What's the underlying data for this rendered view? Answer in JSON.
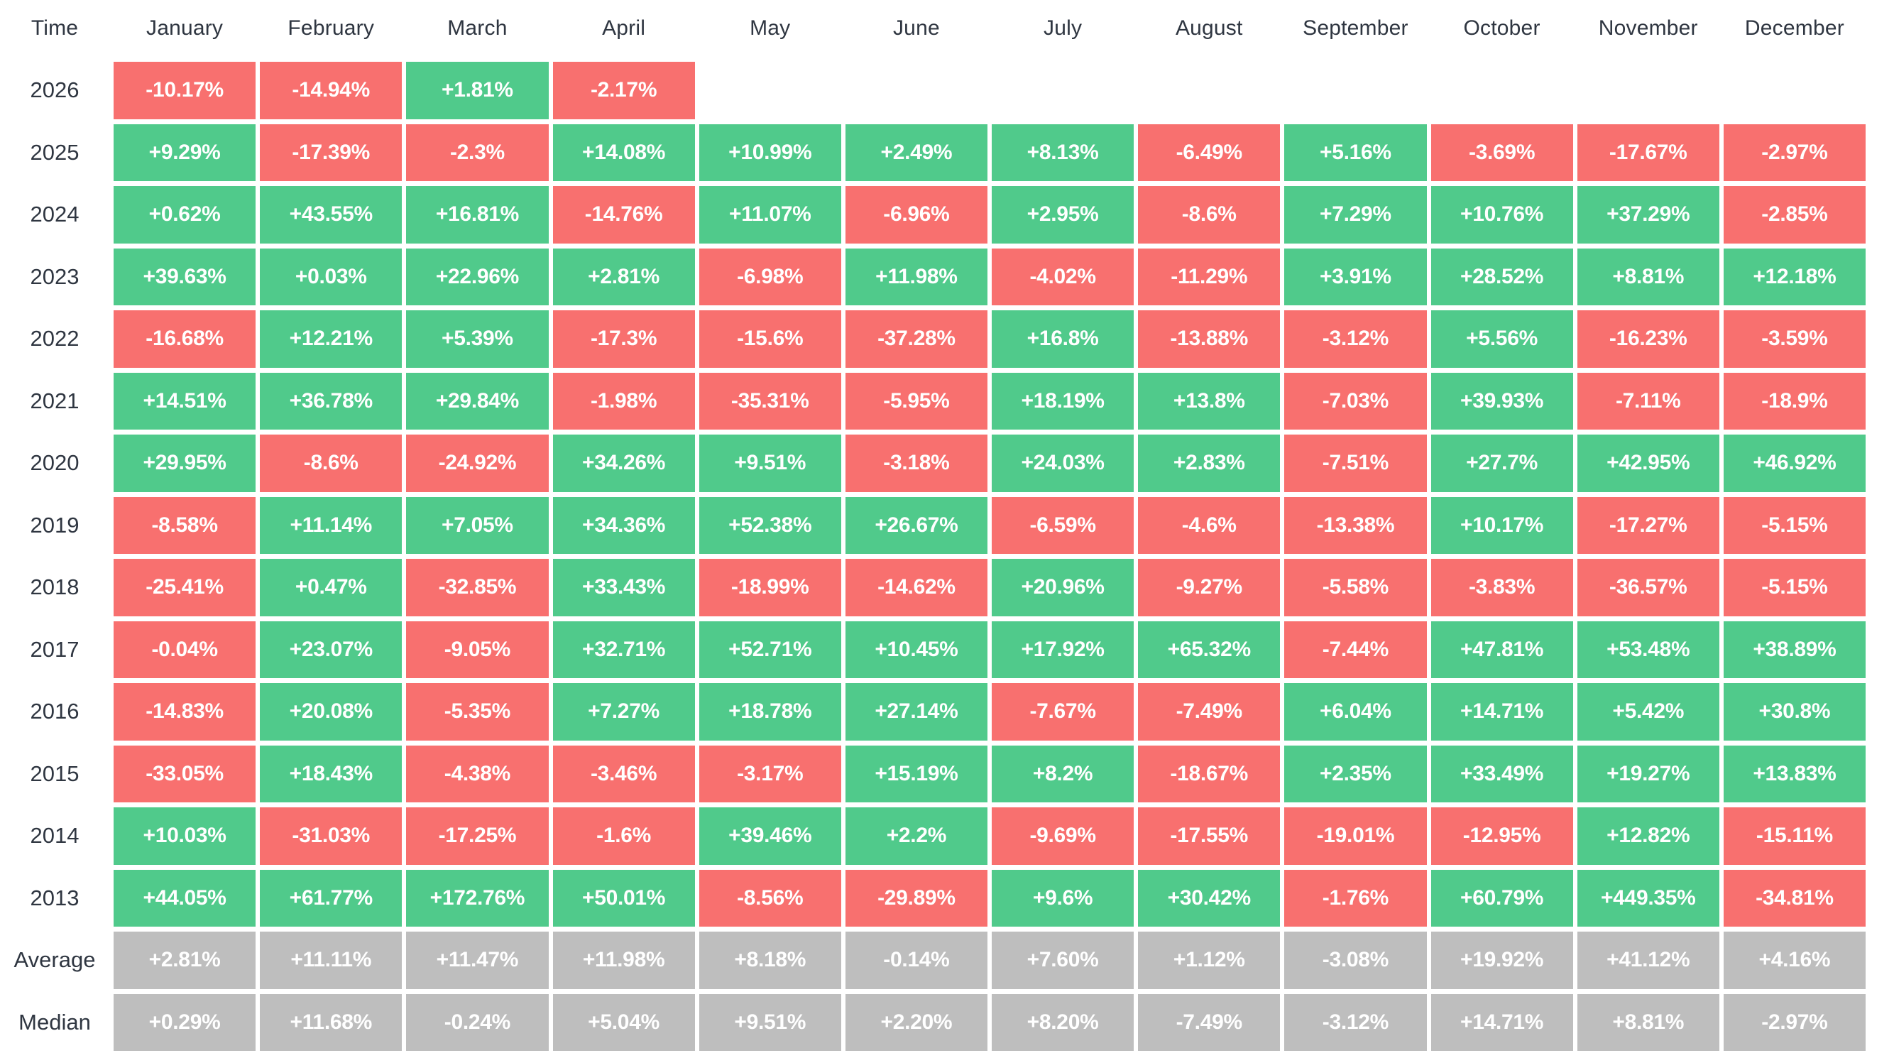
{
  "colors": {
    "positive": "#50CA8B",
    "negative": "#F8706F",
    "summary": "#BEBEBE",
    "header_text": "#2F3641",
    "cell_text": "#FFFFFF",
    "background": "#FFFFFF"
  },
  "table": {
    "corner_label": "Time",
    "months": [
      "January",
      "February",
      "March",
      "April",
      "May",
      "June",
      "July",
      "August",
      "September",
      "October",
      "November",
      "December"
    ],
    "rows": [
      {
        "label": "2026",
        "type": "year",
        "cells": [
          "-10.17%",
          "-14.94%",
          "+1.81%",
          "-2.17%",
          "",
          "",
          "",
          "",
          "",
          "",
          "",
          ""
        ]
      },
      {
        "label": "2025",
        "type": "year",
        "cells": [
          "+9.29%",
          "-17.39%",
          "-2.3%",
          "+14.08%",
          "+10.99%",
          "+2.49%",
          "+8.13%",
          "-6.49%",
          "+5.16%",
          "-3.69%",
          "-17.67%",
          "-2.97%"
        ]
      },
      {
        "label": "2024",
        "type": "year",
        "cells": [
          "+0.62%",
          "+43.55%",
          "+16.81%",
          "-14.76%",
          "+11.07%",
          "-6.96%",
          "+2.95%",
          "-8.6%",
          "+7.29%",
          "+10.76%",
          "+37.29%",
          "-2.85%"
        ]
      },
      {
        "label": "2023",
        "type": "year",
        "cells": [
          "+39.63%",
          "+0.03%",
          "+22.96%",
          "+2.81%",
          "-6.98%",
          "+11.98%",
          "-4.02%",
          "-11.29%",
          "+3.91%",
          "+28.52%",
          "+8.81%",
          "+12.18%"
        ]
      },
      {
        "label": "2022",
        "type": "year",
        "cells": [
          "-16.68%",
          "+12.21%",
          "+5.39%",
          "-17.3%",
          "-15.6%",
          "-37.28%",
          "+16.8%",
          "-13.88%",
          "-3.12%",
          "+5.56%",
          "-16.23%",
          "-3.59%"
        ]
      },
      {
        "label": "2021",
        "type": "year",
        "cells": [
          "+14.51%",
          "+36.78%",
          "+29.84%",
          "-1.98%",
          "-35.31%",
          "-5.95%",
          "+18.19%",
          "+13.8%",
          "-7.03%",
          "+39.93%",
          "-7.11%",
          "-18.9%"
        ]
      },
      {
        "label": "2020",
        "type": "year",
        "cells": [
          "+29.95%",
          "-8.6%",
          "-24.92%",
          "+34.26%",
          "+9.51%",
          "-3.18%",
          "+24.03%",
          "+2.83%",
          "-7.51%",
          "+27.7%",
          "+42.95%",
          "+46.92%"
        ]
      },
      {
        "label": "2019",
        "type": "year",
        "cells": [
          "-8.58%",
          "+11.14%",
          "+7.05%",
          "+34.36%",
          "+52.38%",
          "+26.67%",
          "-6.59%",
          "-4.6%",
          "-13.38%",
          "+10.17%",
          "-17.27%",
          "-5.15%"
        ]
      },
      {
        "label": "2018",
        "type": "year",
        "cells": [
          "-25.41%",
          "+0.47%",
          "-32.85%",
          "+33.43%",
          "-18.99%",
          "-14.62%",
          "+20.96%",
          "-9.27%",
          "-5.58%",
          "-3.83%",
          "-36.57%",
          "-5.15%"
        ]
      },
      {
        "label": "2017",
        "type": "year",
        "cells": [
          "-0.04%",
          "+23.07%",
          "-9.05%",
          "+32.71%",
          "+52.71%",
          "+10.45%",
          "+17.92%",
          "+65.32%",
          "-7.44%",
          "+47.81%",
          "+53.48%",
          "+38.89%"
        ]
      },
      {
        "label": "2016",
        "type": "year",
        "cells": [
          "-14.83%",
          "+20.08%",
          "-5.35%",
          "+7.27%",
          "+18.78%",
          "+27.14%",
          "-7.67%",
          "-7.49%",
          "+6.04%",
          "+14.71%",
          "+5.42%",
          "+30.8%"
        ]
      },
      {
        "label": "2015",
        "type": "year",
        "cells": [
          "-33.05%",
          "+18.43%",
          "-4.38%",
          "-3.46%",
          "-3.17%",
          "+15.19%",
          "+8.2%",
          "-18.67%",
          "+2.35%",
          "+33.49%",
          "+19.27%",
          "+13.83%"
        ]
      },
      {
        "label": "2014",
        "type": "year",
        "cells": [
          "+10.03%",
          "-31.03%",
          "-17.25%",
          "-1.6%",
          "+39.46%",
          "+2.2%",
          "-9.69%",
          "-17.55%",
          "-19.01%",
          "-12.95%",
          "+12.82%",
          "-15.11%"
        ]
      },
      {
        "label": "2013",
        "type": "year",
        "cells": [
          "+44.05%",
          "+61.77%",
          "+172.76%",
          "+50.01%",
          "-8.56%",
          "-29.89%",
          "+9.6%",
          "+30.42%",
          "-1.76%",
          "+60.79%",
          "+449.35%",
          "-34.81%"
        ]
      },
      {
        "label": "Average",
        "type": "summary",
        "cells": [
          "+2.81%",
          "+11.11%",
          "+11.47%",
          "+11.98%",
          "+8.18%",
          "-0.14%",
          "+7.60%",
          "+1.12%",
          "-3.08%",
          "+19.92%",
          "+41.12%",
          "+4.16%"
        ]
      },
      {
        "label": "Median",
        "type": "summary",
        "cells": [
          "+0.29%",
          "+11.68%",
          "-0.24%",
          "+5.04%",
          "+9.51%",
          "+2.20%",
          "+8.20%",
          "-7.49%",
          "-3.12%",
          "+14.71%",
          "+8.81%",
          "-2.97%"
        ]
      }
    ]
  },
  "chart_data": {
    "type": "heatmap",
    "x_categories": [
      "January",
      "February",
      "March",
      "April",
      "May",
      "June",
      "July",
      "August",
      "September",
      "October",
      "November",
      "December"
    ],
    "y_categories": [
      "2026",
      "2025",
      "2024",
      "2023",
      "2022",
      "2021",
      "2020",
      "2019",
      "2018",
      "2017",
      "2016",
      "2015",
      "2014",
      "2013",
      "Average",
      "Median"
    ],
    "corner_label": "Time",
    "legend_position": "none",
    "grid": false,
    "values_pct": [
      [
        -10.17,
        -14.94,
        1.81,
        -2.17,
        null,
        null,
        null,
        null,
        null,
        null,
        null,
        null
      ],
      [
        9.29,
        -17.39,
        -2.3,
        14.08,
        10.99,
        2.49,
        8.13,
        -6.49,
        5.16,
        -3.69,
        -17.67,
        -2.97
      ],
      [
        0.62,
        43.55,
        16.81,
        -14.76,
        11.07,
        -6.96,
        2.95,
        -8.6,
        7.29,
        10.76,
        37.29,
        -2.85
      ],
      [
        39.63,
        0.03,
        22.96,
        2.81,
        -6.98,
        11.98,
        -4.02,
        -11.29,
        3.91,
        28.52,
        8.81,
        12.18
      ],
      [
        -16.68,
        12.21,
        5.39,
        -17.3,
        -15.6,
        -37.28,
        16.8,
        -13.88,
        -3.12,
        5.56,
        -16.23,
        -3.59
      ],
      [
        14.51,
        36.78,
        29.84,
        -1.98,
        -35.31,
        -5.95,
        18.19,
        13.8,
        -7.03,
        39.93,
        -7.11,
        -18.9
      ],
      [
        29.95,
        -8.6,
        -24.92,
        34.26,
        9.51,
        -3.18,
        24.03,
        2.83,
        -7.51,
        27.7,
        42.95,
        46.92
      ],
      [
        -8.58,
        11.14,
        7.05,
        34.36,
        52.38,
        26.67,
        -6.59,
        -4.6,
        -13.38,
        10.17,
        -17.27,
        -5.15
      ],
      [
        -25.41,
        0.47,
        -32.85,
        33.43,
        -18.99,
        -14.62,
        20.96,
        -9.27,
        -5.58,
        -3.83,
        -36.57,
        -5.15
      ],
      [
        -0.04,
        23.07,
        -9.05,
        32.71,
        52.71,
        10.45,
        17.92,
        65.32,
        -7.44,
        47.81,
        53.48,
        38.89
      ],
      [
        -14.83,
        20.08,
        -5.35,
        7.27,
        18.78,
        27.14,
        -7.67,
        -7.49,
        6.04,
        14.71,
        5.42,
        30.8
      ],
      [
        -33.05,
        18.43,
        -4.38,
        -3.46,
        -3.17,
        15.19,
        8.2,
        -18.67,
        2.35,
        33.49,
        19.27,
        13.83
      ],
      [
        10.03,
        -31.03,
        -17.25,
        -1.6,
        39.46,
        2.2,
        -9.69,
        -17.55,
        -19.01,
        -12.95,
        12.82,
        -15.11
      ],
      [
        44.05,
        61.77,
        172.76,
        50.01,
        -8.56,
        -29.89,
        9.6,
        30.42,
        -1.76,
        60.79,
        449.35,
        -34.81
      ],
      [
        2.81,
        11.11,
        11.47,
        11.98,
        8.18,
        -0.14,
        7.6,
        1.12,
        -3.08,
        19.92,
        41.12,
        4.16
      ],
      [
        0.29,
        11.68,
        -0.24,
        5.04,
        9.51,
        2.2,
        8.2,
        -7.49,
        -3.12,
        14.71,
        8.81,
        -2.97
      ]
    ]
  }
}
